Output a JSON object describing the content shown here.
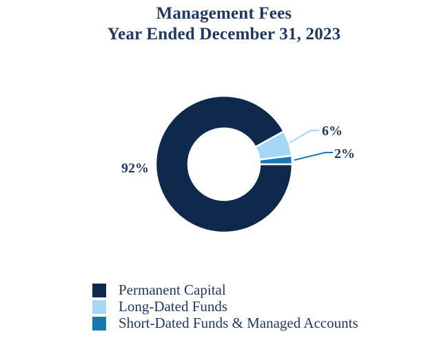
{
  "chart_data": {
    "type": "pie",
    "donut": true,
    "title": "Management Fees",
    "subtitle": "Year Ended December 31, 2023",
    "categories": [
      "Permanent Capital",
      "Long-Dated Funds",
      "Short-Dated Funds & Managed Accounts"
    ],
    "values": [
      92,
      6,
      2
    ],
    "unit": "%",
    "labels": [
      "92%",
      "6%",
      "2%"
    ],
    "colors": [
      "#0E294B",
      "#A6D7F7",
      "#1878B2"
    ],
    "text_color": "#1F3864",
    "background": "#FFFFFF",
    "start_angle_deg": 0,
    "direction": "clockwise",
    "legend_position": "bottom-left",
    "grid": false
  }
}
